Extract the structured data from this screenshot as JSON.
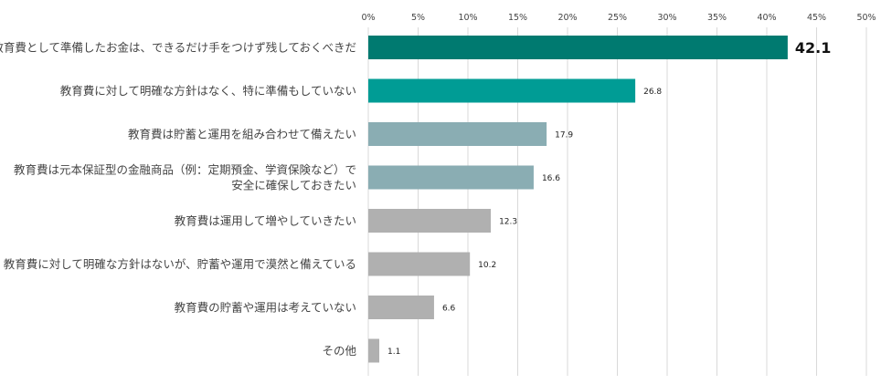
{
  "chart_data": {
    "type": "bar",
    "orientation": "horizontal",
    "title": "",
    "xlabel": "",
    "ylabel": "",
    "xlim": [
      0,
      50
    ],
    "tick_step": 5,
    "tick_suffix": "%",
    "grid": true,
    "categories": [
      [
        "教育費として準備したお金は、できるだけ手をつけず残しておくべきだ"
      ],
      [
        "教育費に対して明確な方針はなく、特に準備もしていない"
      ],
      [
        "教育費は貯蓄と運用を組み合わせて備えたい"
      ],
      [
        "教育費は元本保証型の金融商品（例：定期預金、学資保険など）で",
        "安全に確保しておきたい"
      ],
      [
        "教育費は運用して増やしていきたい"
      ],
      [
        "教育費に対して明確な方針はないが、貯蓄や運用で漠然と備えている"
      ],
      [
        "教育費の貯蓄や運用は考えていない"
      ],
      [
        "その他"
      ]
    ],
    "values": [
      42.1,
      26.8,
      17.9,
      16.6,
      12.3,
      10.2,
      6.6,
      1.1
    ],
    "value_labels": [
      "42.1",
      "26.8",
      "17.9",
      "16.6",
      "12.3",
      "10.2",
      "6.6",
      "1.1"
    ],
    "colors": [
      "#007a70",
      "#009c95",
      "#8aadb3",
      "#8aadb3",
      "#b0b0b0",
      "#b0b0b0",
      "#b0b0b0",
      "#b0b0b0"
    ],
    "highlight_index": 0
  }
}
